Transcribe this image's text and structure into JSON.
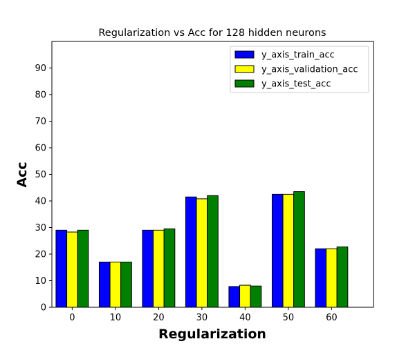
{
  "chart_data": {
    "type": "bar",
    "title": "Regularization vs Acc for 128 hidden neurons",
    "xlabel": "Regularization",
    "ylabel": "Acc",
    "categories": [
      "0",
      "10",
      "20",
      "30",
      "40",
      "50",
      "60"
    ],
    "x": [
      0,
      10,
      20,
      30,
      40,
      50,
      60
    ],
    "xlim": [
      -4.7,
      69.7
    ],
    "ylim": [
      0,
      100
    ],
    "yticks": [
      0,
      10,
      20,
      30,
      40,
      50,
      60,
      70,
      80,
      90
    ],
    "grid": false,
    "legend_position": "top-right",
    "series": [
      {
        "name": "y_axis_train_acc",
        "color": "#0000ff",
        "values": [
          29.0,
          17.0,
          29.0,
          41.5,
          7.8,
          42.5,
          22.0
        ]
      },
      {
        "name": "y_axis_validation_acc",
        "color": "#ffff00",
        "values": [
          28.3,
          17.0,
          29.0,
          40.8,
          8.3,
          42.5,
          22.0
        ]
      },
      {
        "name": "y_axis_test_acc",
        "color": "#008000",
        "values": [
          29.0,
          17.0,
          29.5,
          42.0,
          8.0,
          43.5,
          22.7
        ]
      }
    ]
  }
}
